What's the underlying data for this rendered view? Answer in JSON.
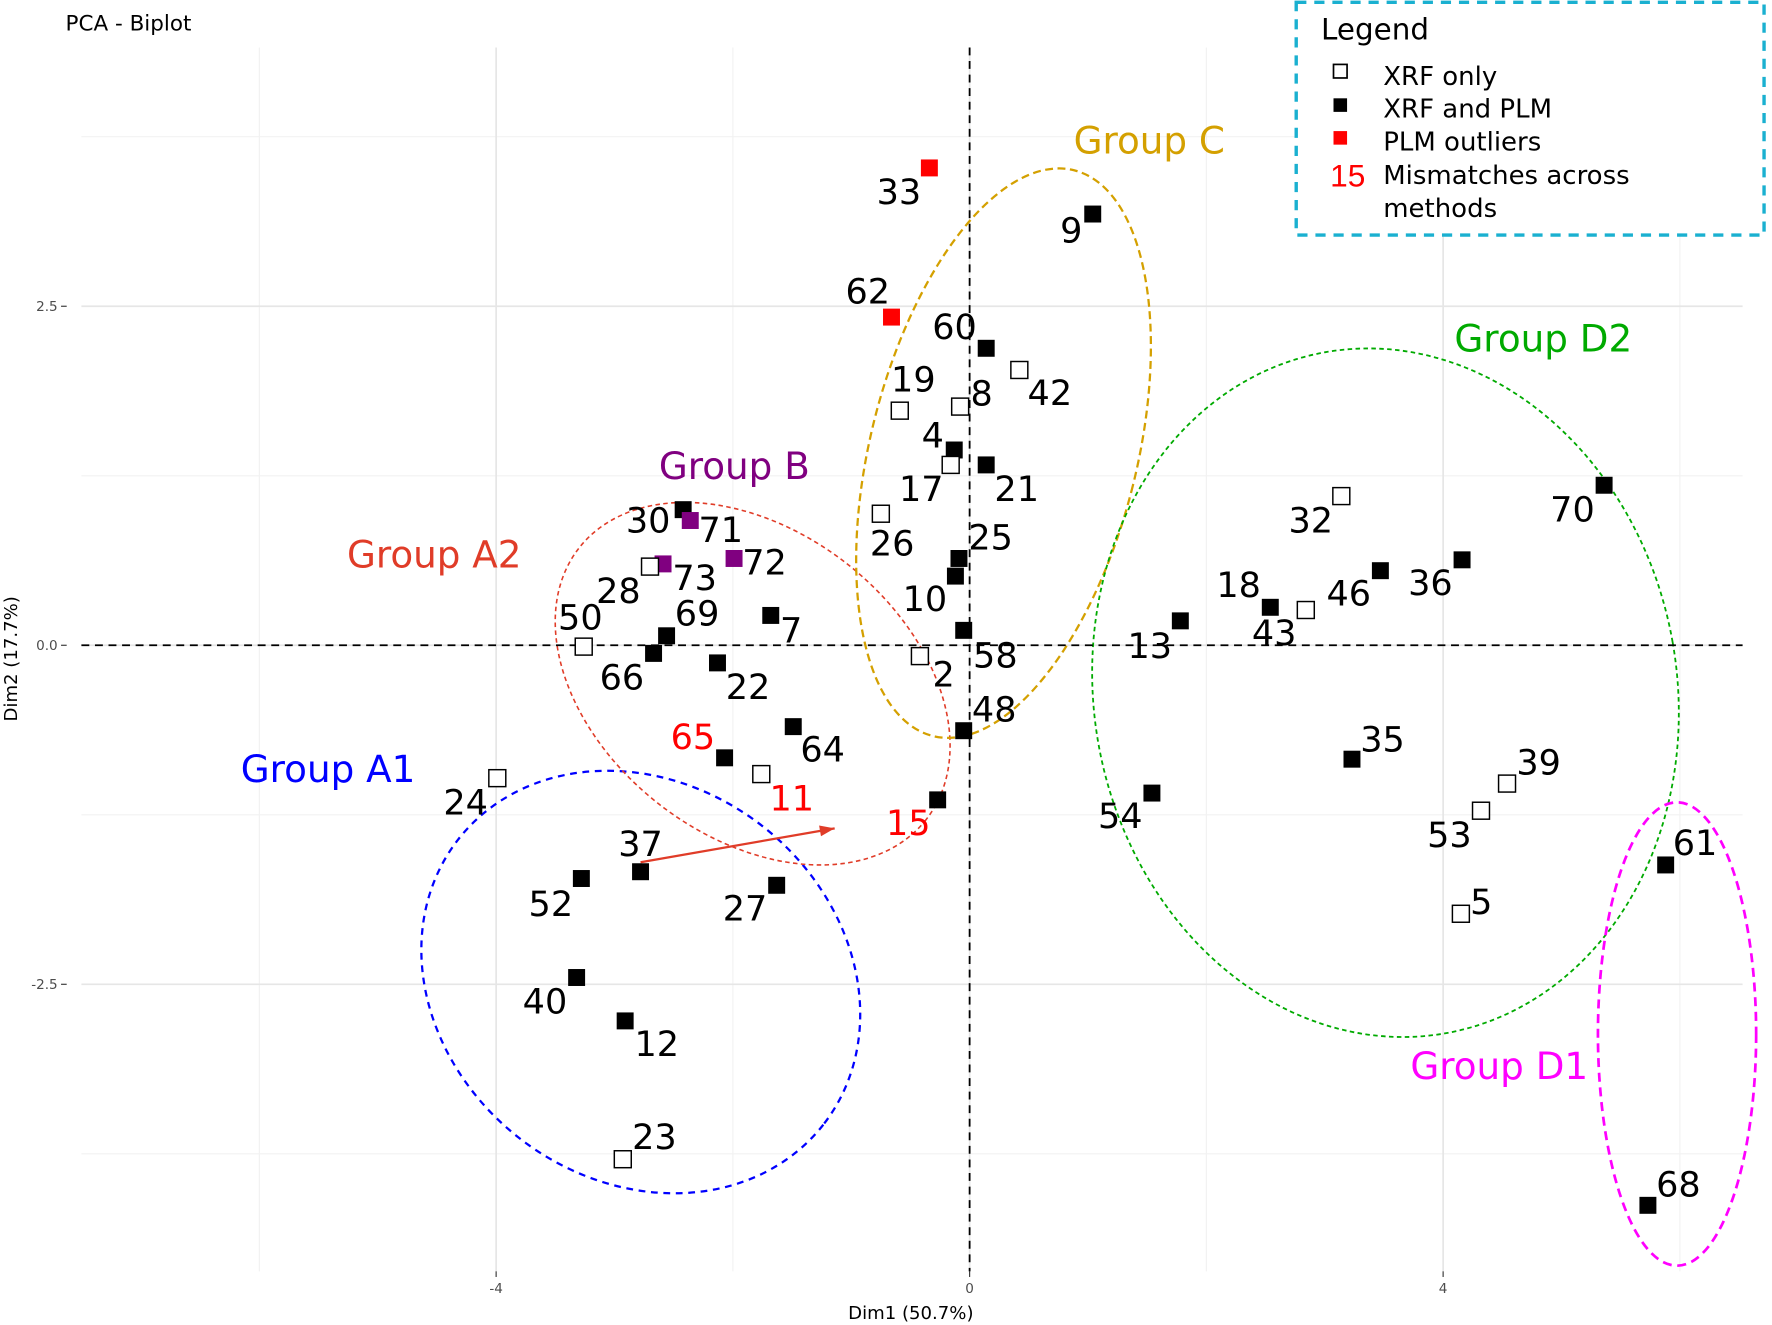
{
  "chart_data": {
    "type": "scatter",
    "title": "PCA - Biplot",
    "xlabel": "Dim1 (50.7%)",
    "ylabel": "Dim2 (17.7%)",
    "xlim": [
      -7.5,
      6.5
    ],
    "ylim": [
      -4.6,
      4.4
    ],
    "xticks": [
      {
        "v": -4,
        "label": "-4"
      },
      {
        "v": 0,
        "label": "0"
      },
      {
        "v": 4,
        "label": "4"
      }
    ],
    "yticks": [
      {
        "v": -2.5,
        "label": "-2.5"
      },
      {
        "v": 0,
        "label": "0.0"
      },
      {
        "v": 2.5,
        "label": "2.5"
      }
    ],
    "grid": true,
    "reference_lines": {
      "x": 0,
      "y": 0,
      "style": "dashed"
    },
    "colors": {
      "xrf_only": "#ffffff",
      "xrf_plm": "#000000",
      "plm_outlier": "#ff0000",
      "purple": "#800080",
      "mismatch_label": "#ff0000"
    },
    "points": [
      {
        "id": "33",
        "x": -0.34,
        "y": 3.52,
        "type": "plm_outlier"
      },
      {
        "id": "9",
        "x": 1.04,
        "y": 3.18,
        "type": "xrf_plm"
      },
      {
        "id": "62",
        "x": -0.66,
        "y": 2.42,
        "type": "plm_outlier"
      },
      {
        "id": "60",
        "x": 0.14,
        "y": 2.19,
        "type": "xrf_plm"
      },
      {
        "id": "42",
        "x": 0.42,
        "y": 2.03,
        "type": "xrf_only"
      },
      {
        "id": "8",
        "x": -0.08,
        "y": 1.76,
        "type": "xrf_only"
      },
      {
        "id": "19",
        "x": -0.59,
        "y": 1.73,
        "type": "xrf_only"
      },
      {
        "id": "4",
        "x": -0.13,
        "y": 1.44,
        "type": "xrf_plm"
      },
      {
        "id": "17",
        "x": -0.16,
        "y": 1.33,
        "type": "xrf_only"
      },
      {
        "id": "21",
        "x": 0.14,
        "y": 1.33,
        "type": "xrf_plm"
      },
      {
        "id": "26",
        "x": -0.75,
        "y": 0.97,
        "type": "xrf_only"
      },
      {
        "id": "25",
        "x": -0.09,
        "y": 0.64,
        "type": "xrf_plm"
      },
      {
        "id": "10",
        "x": -0.12,
        "y": 0.51,
        "type": "xrf_plm"
      },
      {
        "id": "58",
        "x": -0.05,
        "y": 0.11,
        "type": "xrf_plm"
      },
      {
        "id": "2",
        "x": -0.42,
        "y": -0.08,
        "type": "xrf_only"
      },
      {
        "id": "48",
        "x": -0.05,
        "y": -0.63,
        "type": "xrf_plm"
      },
      {
        "id": "15",
        "x": -0.27,
        "y": -1.14,
        "type": "xrf_plm",
        "mismatch": true
      },
      {
        "id": "30",
        "x": -2.42,
        "y": 1.0,
        "type": "xrf_plm"
      },
      {
        "id": "71",
        "x": -2.36,
        "y": 0.92,
        "type": "purple"
      },
      {
        "id": "72",
        "x": -1.99,
        "y": 0.64,
        "type": "purple"
      },
      {
        "id": "73",
        "x": -2.59,
        "y": 0.6,
        "type": "purple"
      },
      {
        "id": "28",
        "x": -2.7,
        "y": 0.58,
        "type": "xrf_only"
      },
      {
        "id": "69",
        "x": -2.56,
        "y": 0.07,
        "type": "xrf_plm"
      },
      {
        "id": "66",
        "x": -2.67,
        "y": -0.06,
        "type": "xrf_plm"
      },
      {
        "id": "50",
        "x": -3.26,
        "y": -0.01,
        "type": "xrf_only"
      },
      {
        "id": "7",
        "x": -1.68,
        "y": 0.22,
        "type": "xrf_plm"
      },
      {
        "id": "22",
        "x": -2.13,
        "y": -0.13,
        "type": "xrf_plm"
      },
      {
        "id": "64",
        "x": -1.49,
        "y": -0.6,
        "type": "xrf_plm"
      },
      {
        "id": "65",
        "x": -2.07,
        "y": -0.83,
        "type": "xrf_plm",
        "mismatch": true
      },
      {
        "id": "11",
        "x": -1.76,
        "y": -0.95,
        "type": "xrf_only",
        "mismatch": true
      },
      {
        "id": "24",
        "x": -3.99,
        "y": -0.98,
        "type": "xrf_only"
      },
      {
        "id": "37",
        "x": -2.78,
        "y": -1.67,
        "type": "xrf_plm"
      },
      {
        "id": "52",
        "x": -3.28,
        "y": -1.72,
        "type": "xrf_plm"
      },
      {
        "id": "27",
        "x": -1.63,
        "y": -1.77,
        "type": "xrf_plm"
      },
      {
        "id": "40",
        "x": -3.32,
        "y": -2.45,
        "type": "xrf_plm"
      },
      {
        "id": "12",
        "x": -2.91,
        "y": -2.77,
        "type": "xrf_plm"
      },
      {
        "id": "23",
        "x": -2.93,
        "y": -3.79,
        "type": "xrf_only"
      },
      {
        "id": "32",
        "x": 3.14,
        "y": 1.1,
        "type": "xrf_only"
      },
      {
        "id": "70",
        "x": 5.36,
        "y": 1.18,
        "type": "xrf_plm"
      },
      {
        "id": "36",
        "x": 4.16,
        "y": 0.63,
        "type": "xrf_plm"
      },
      {
        "id": "46",
        "x": 3.47,
        "y": 0.55,
        "type": "xrf_plm"
      },
      {
        "id": "18",
        "x": 2.54,
        "y": 0.28,
        "type": "xrf_plm"
      },
      {
        "id": "43",
        "x": 2.84,
        "y": 0.26,
        "type": "xrf_only"
      },
      {
        "id": "13",
        "x": 1.78,
        "y": 0.18,
        "type": "xrf_plm"
      },
      {
        "id": "35",
        "x": 3.23,
        "y": -0.84,
        "type": "xrf_plm"
      },
      {
        "id": "39",
        "x": 4.54,
        "y": -1.02,
        "type": "xrf_only"
      },
      {
        "id": "53",
        "x": 4.32,
        "y": -1.22,
        "type": "xrf_only"
      },
      {
        "id": "54",
        "x": 1.54,
        "y": -1.09,
        "type": "xrf_plm"
      },
      {
        "id": "5",
        "x": 4.15,
        "y": -1.98,
        "type": "xrf_only"
      },
      {
        "id": "61",
        "x": 5.88,
        "y": -1.62,
        "type": "xrf_plm"
      },
      {
        "id": "68",
        "x": 5.73,
        "y": -4.13,
        "type": "xrf_plm"
      }
    ],
    "groups": [
      {
        "name": "Group A1",
        "color": "#0000ff"
      },
      {
        "name": "Group A2",
        "color": "#e03c28"
      },
      {
        "name": "Group B",
        "color": "#800080"
      },
      {
        "name": "Group C",
        "color": "#d4a000"
      },
      {
        "name": "Group D1",
        "color": "#ff00ff"
      },
      {
        "name": "Group D2",
        "color": "#00aa00"
      }
    ],
    "arrow": {
      "from": [
        -2.78,
        -1.6
      ],
      "to": [
        -1.14,
        -1.35
      ],
      "color": "#e03c28"
    },
    "legend": {
      "title": "Legend",
      "placement": "top-right",
      "border_color": "#1ab0d0",
      "items": [
        {
          "marker": "xrf_only",
          "label": "XRF only"
        },
        {
          "marker": "xrf_plm",
          "label": "XRF and PLM"
        },
        {
          "marker": "plm_outlier",
          "label": "PLM outliers"
        },
        {
          "marker": "mismatch",
          "marker_text": "15",
          "label_lines": [
            "Mismatches across",
            "methods"
          ]
        }
      ]
    }
  }
}
